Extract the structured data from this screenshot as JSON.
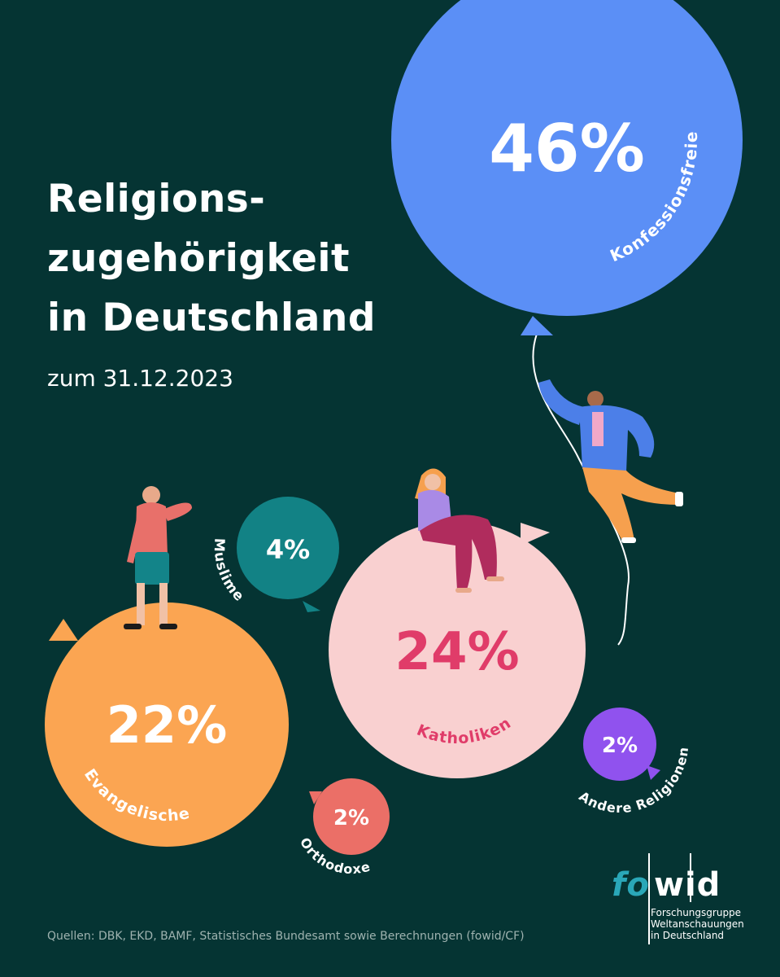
{
  "header": {
    "title_lines": [
      "Religions-",
      "zugehörigkeit",
      "in Deutschland"
    ],
    "subtitle": "zum 31.12.2023"
  },
  "footer": {
    "sources": "Quellen: DBK, EKD, BAMF, Statistisches Bundesamt sowie Berechnungen (fowid/CF)"
  },
  "logo": {
    "fo": "fo",
    "wid": "wid",
    "lines": [
      "Forschungsgruppe",
      "Weltanschauungen",
      "in Deutschland"
    ]
  },
  "colors": {
    "background": "#053433",
    "konfessionsfreie": "#5B8FF6",
    "katholiken": "#F9D0D0",
    "katholiken_text": "#E03C69",
    "evangelische": "#FBA552",
    "muslime": "#128285",
    "orthodoxe": "#EB6F67",
    "andere": "#9052EE",
    "logo_accent": "#2aa7b8"
  },
  "chart_data": {
    "type": "bubble",
    "series": [
      {
        "name": "Konfessionsfreie",
        "value": 46,
        "value_label": "46%",
        "color": "#5B8FF6",
        "text_color": "#ffffff"
      },
      {
        "name": "Katholiken",
        "value": 24,
        "value_label": "24%",
        "color": "#F9D0D0",
        "text_color": "#E03C69"
      },
      {
        "name": "Evangelische",
        "value": 22,
        "value_label": "22%",
        "color": "#FBA552",
        "text_color": "#ffffff"
      },
      {
        "name": "Muslime",
        "value": 4,
        "value_label": "4%",
        "color": "#128285",
        "text_color": "#ffffff"
      },
      {
        "name": "Orthodoxe",
        "value": 2,
        "value_label": "2%",
        "color": "#EB6F67",
        "text_color": "#ffffff"
      },
      {
        "name": "Andere Religionen",
        "value": 2,
        "value_label": "2%",
        "color": "#9052EE",
        "text_color": "#ffffff"
      }
    ]
  }
}
